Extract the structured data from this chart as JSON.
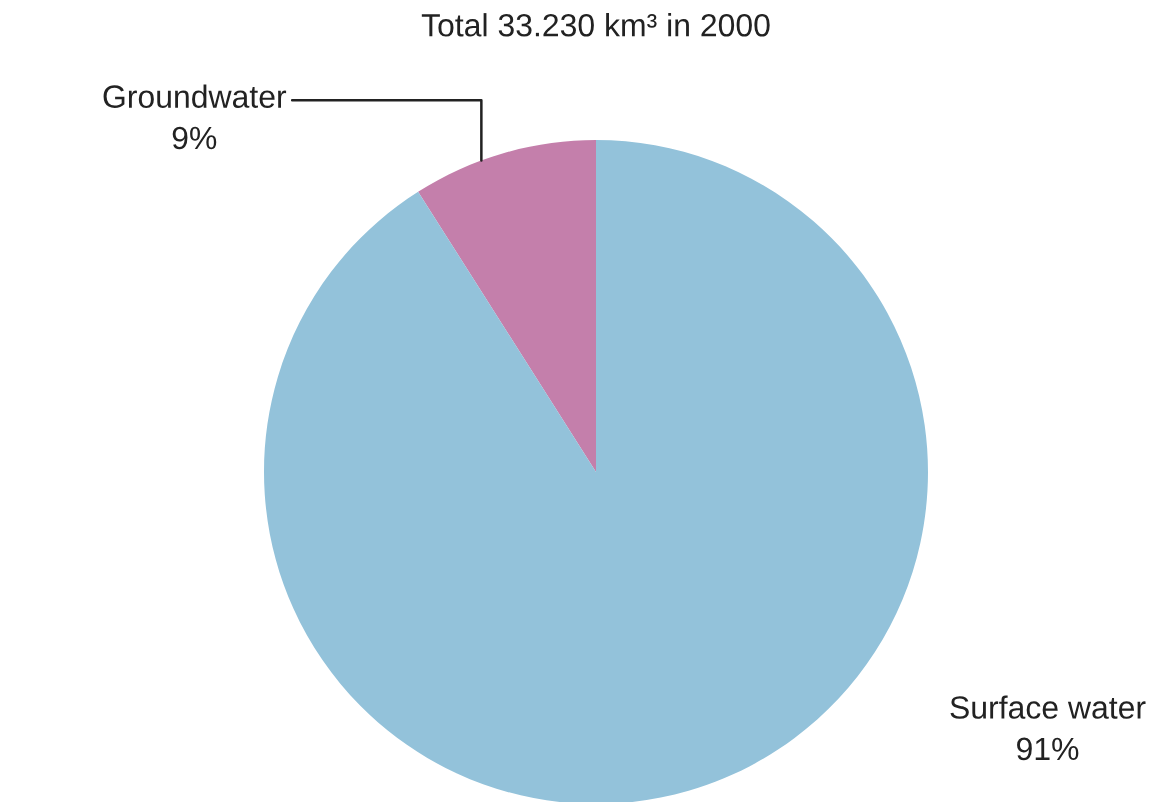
{
  "chart_data": {
    "type": "pie",
    "title": "Total 33.230 km³ in 2000",
    "categories": [
      "Groundwater",
      "Surface water"
    ],
    "values": [
      9,
      91
    ],
    "colors": [
      "#c47fab",
      "#93c2da"
    ],
    "value_labels": [
      "9%",
      "91%"
    ]
  }
}
